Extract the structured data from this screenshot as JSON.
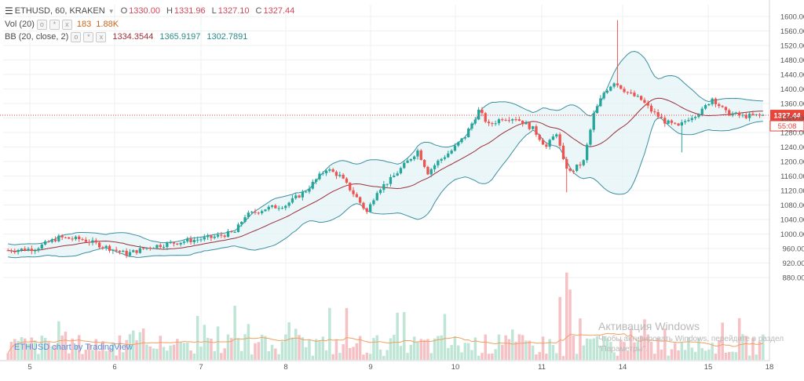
{
  "legend": {
    "symbol": "ETHUSD, 60, KRAKEN",
    "o_key": "O",
    "o_val": "1330.00",
    "h_key": "H",
    "h_val": "1331.96",
    "l_key": "L",
    "l_val": "1327.10",
    "c_key": "C",
    "c_val": "1327.44",
    "vol_label": "Vol (20)",
    "vol_value": "183",
    "vol_ma": "1.88K",
    "bb_label": "BB (20, close, 2)",
    "bb_basis": "1334.3544",
    "bb_upper": "1365.9197",
    "bb_lower": "1302.7891"
  },
  "watermark": "ETHUSD chart by TradingView",
  "activation": {
    "title": "Активация Windows",
    "text": "Чтобы активировать Windows, перейдите в раздел \"Параметры\"."
  },
  "colors": {
    "up": "#26a69a",
    "down": "#ef5350",
    "bb_fill": "#e6f4f6",
    "bb_band": "#3a8fa0",
    "bb_basis": "#9c2f3a",
    "vol_ma": "#f0a060",
    "last_price": "#e8443a"
  },
  "chart_data": {
    "type": "candlestick",
    "title": "ETHUSD, 60, KRAKEN",
    "y_axis": {
      "range": [
        840,
        1600
      ],
      "ticks": [
        1600,
        1560,
        1520,
        1480,
        1440,
        1400,
        1360,
        1320,
        1280,
        1240,
        1200,
        1160,
        1120,
        1080,
        1040,
        1000,
        960,
        920,
        880
      ]
    },
    "x_axis": {
      "ticks": [
        "5",
        "6",
        "7",
        "8",
        "9",
        "10",
        "11",
        "14",
        "15",
        "18"
      ]
    },
    "last_price": "1327.44",
    "last_countdown": "55:08",
    "grid": true
  }
}
